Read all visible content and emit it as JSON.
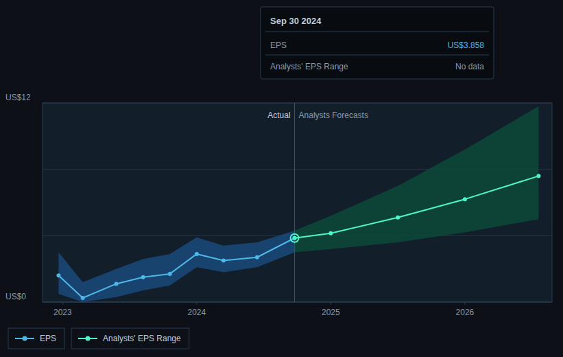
{
  "chart_data": {
    "type": "line",
    "xlim": [
      2022.85,
      2026.65
    ],
    "xticks": [
      2023,
      2024,
      2025,
      2026
    ],
    "ylim": [
      0,
      12
    ],
    "yticks": [
      {
        "value": 0,
        "label": "US$0"
      },
      {
        "value": 4,
        "label": null
      },
      {
        "value": 8,
        "label": null
      },
      {
        "value": 12,
        "label": "US$12"
      }
    ],
    "grid": true,
    "legend": "lower left",
    "series": [
      {
        "type": "band",
        "color": "#1a4a7a",
        "x": [
          2022.97,
          2023.15,
          2023.4,
          2023.6,
          2023.8,
          2024.0,
          2024.2,
          2024.45,
          2024.73
        ],
        "lower": [
          0.5,
          0.0,
          0.3,
          0.7,
          1.0,
          2.1,
          1.8,
          2.1,
          3.0
        ],
        "upper": [
          3.0,
          1.2,
          2.0,
          2.6,
          2.9,
          3.9,
          3.4,
          3.6,
          4.3
        ]
      },
      {
        "type": "band",
        "color": "#0d4a3a",
        "x": [
          2024.73,
          2025.0,
          2025.5,
          2026.0,
          2026.55
        ],
        "lower": [
          3.0,
          3.2,
          3.6,
          4.2,
          5.0
        ],
        "upper": [
          4.3,
          5.2,
          7.0,
          9.2,
          11.8
        ]
      },
      {
        "name": "EPS",
        "type": "line",
        "color": "#4db8e8",
        "marker": "circle",
        "x": [
          2022.97,
          2023.15,
          2023.4,
          2023.6,
          2023.8,
          2024.0,
          2024.2,
          2024.45,
          2024.73
        ],
        "values": [
          1.6,
          0.25,
          1.1,
          1.5,
          1.7,
          2.9,
          2.5,
          2.7,
          3.858
        ]
      },
      {
        "name": "Analysts' EPS Range",
        "type": "line",
        "color": "#4df5c8",
        "marker": "circle",
        "x": [
          2024.73,
          2025.0,
          2025.5,
          2026.0,
          2026.55
        ],
        "values": [
          3.858,
          4.15,
          5.1,
          6.2,
          7.6
        ]
      }
    ],
    "annotations": [
      {
        "type": "vline",
        "x": 2024.73
      },
      {
        "text": "Actual",
        "x": 2024.73,
        "y": 11.5,
        "side": "left"
      },
      {
        "text": "Analysts Forecasts",
        "x": 2024.73,
        "y": 11.5,
        "side": "right"
      }
    ],
    "tooltip": {
      "title": "Sep 30 2024",
      "rows": [
        {
          "label": "EPS",
          "value": 3.858,
          "value_label": "US$3.858"
        },
        {
          "label": "Analysts' EPS Range",
          "value_label": "No data"
        }
      ]
    }
  }
}
